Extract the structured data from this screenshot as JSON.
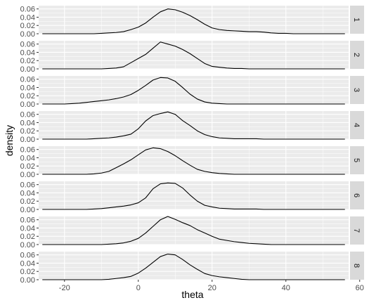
{
  "chart_data": {
    "type": "area",
    "facet_layout": "vertical-strips-right",
    "xlabel": "theta",
    "ylabel": "density",
    "xlim": [
      -27,
      57
    ],
    "ylim": [
      0,
      0.068
    ],
    "x_ticks": [
      -20,
      0,
      20,
      40,
      60
    ],
    "x_tick_labels": [
      "-20",
      "0",
      "20",
      "40",
      "60"
    ],
    "y_ticks": [
      0.0,
      0.02,
      0.04,
      0.06
    ],
    "y_tick_labels": [
      "0.00",
      "0.02",
      "0.04",
      "0.06"
    ],
    "grid": true,
    "x": [
      -26,
      -24,
      -22,
      -20,
      -18,
      -16,
      -14,
      -12,
      -10,
      -8,
      -6,
      -4,
      -2,
      0,
      2,
      4,
      6,
      8,
      10,
      12,
      14,
      16,
      18,
      20,
      22,
      24,
      26,
      28,
      30,
      32,
      34,
      36,
      38,
      40,
      42,
      44,
      46,
      48,
      50,
      52,
      54,
      56
    ],
    "series": [
      {
        "name": "1",
        "values": [
          0,
          0,
          0,
          0,
          0,
          0,
          0,
          0,
          0.001,
          0.002,
          0.003,
          0.005,
          0.01,
          0.016,
          0.026,
          0.04,
          0.053,
          0.06,
          0.058,
          0.052,
          0.044,
          0.034,
          0.023,
          0.014,
          0.01,
          0.008,
          0.007,
          0.006,
          0.005,
          0.005,
          0.004,
          0.002,
          0.001,
          0.001,
          0,
          0,
          0,
          0,
          0,
          0,
          0,
          0
        ]
      },
      {
        "name": "2",
        "values": [
          0,
          0,
          0,
          0,
          0,
          0,
          0,
          0,
          0,
          0.001,
          0.002,
          0.005,
          0.015,
          0.025,
          0.035,
          0.05,
          0.065,
          0.06,
          0.055,
          0.047,
          0.037,
          0.025,
          0.013,
          0.006,
          0.004,
          0.002,
          0.001,
          0.001,
          0,
          0,
          0,
          0,
          0,
          0,
          0,
          0,
          0,
          0,
          0,
          0,
          0,
          0
        ]
      },
      {
        "name": "3",
        "values": [
          0,
          0,
          0,
          0,
          0.001,
          0.002,
          0.004,
          0.006,
          0.008,
          0.01,
          0.013,
          0.017,
          0.023,
          0.033,
          0.045,
          0.058,
          0.064,
          0.063,
          0.055,
          0.04,
          0.024,
          0.012,
          0.005,
          0.002,
          0.001,
          0,
          0,
          0,
          0,
          0,
          0,
          0,
          0,
          0,
          0,
          0,
          0,
          0,
          0,
          0,
          0,
          0
        ]
      },
      {
        "name": "4",
        "values": [
          0,
          0,
          0,
          0,
          0,
          0,
          0,
          0.001,
          0.002,
          0.003,
          0.005,
          0.008,
          0.012,
          0.025,
          0.044,
          0.057,
          0.062,
          0.066,
          0.06,
          0.045,
          0.033,
          0.02,
          0.011,
          0.006,
          0.003,
          0.002,
          0.001,
          0.001,
          0.001,
          0.001,
          0,
          0,
          0,
          0,
          0,
          0,
          0,
          0,
          0,
          0,
          0,
          0
        ]
      },
      {
        "name": "5",
        "values": [
          0,
          0,
          0,
          0,
          0,
          0,
          0,
          0.001,
          0.003,
          0.007,
          0.016,
          0.025,
          0.035,
          0.047,
          0.059,
          0.064,
          0.062,
          0.055,
          0.045,
          0.033,
          0.022,
          0.012,
          0.007,
          0.004,
          0.002,
          0.001,
          0,
          0,
          0,
          0,
          0,
          0,
          0,
          0,
          0,
          0,
          0,
          0,
          0,
          0,
          0,
          0
        ]
      },
      {
        "name": "6",
        "values": [
          0,
          0,
          0,
          0,
          0,
          0,
          0,
          0.001,
          0.002,
          0.004,
          0.006,
          0.008,
          0.011,
          0.016,
          0.028,
          0.05,
          0.062,
          0.064,
          0.063,
          0.052,
          0.035,
          0.02,
          0.01,
          0.006,
          0.003,
          0.002,
          0.001,
          0.001,
          0.001,
          0.001,
          0,
          0,
          0,
          0,
          0,
          0,
          0,
          0,
          0,
          0,
          0,
          0
        ]
      },
      {
        "name": "7",
        "values": [
          0,
          0,
          0,
          0,
          0,
          0,
          0,
          0,
          0,
          0.001,
          0.002,
          0.004,
          0.008,
          0.015,
          0.028,
          0.044,
          0.06,
          0.068,
          0.061,
          0.053,
          0.046,
          0.036,
          0.028,
          0.02,
          0.013,
          0.01,
          0.007,
          0.005,
          0.003,
          0.002,
          0.001,
          0,
          0,
          0,
          0,
          0,
          0,
          0,
          0,
          0,
          0,
          0
        ]
      },
      {
        "name": "8",
        "values": [
          0,
          0,
          0,
          0,
          0,
          0,
          0,
          0,
          0,
          0.001,
          0.003,
          0.005,
          0.008,
          0.016,
          0.028,
          0.042,
          0.056,
          0.062,
          0.06,
          0.049,
          0.036,
          0.025,
          0.015,
          0.01,
          0.007,
          0.005,
          0.003,
          0.001,
          0,
          0,
          0,
          0,
          0,
          0,
          0,
          0,
          0,
          0,
          0,
          0,
          0,
          0
        ]
      }
    ]
  }
}
